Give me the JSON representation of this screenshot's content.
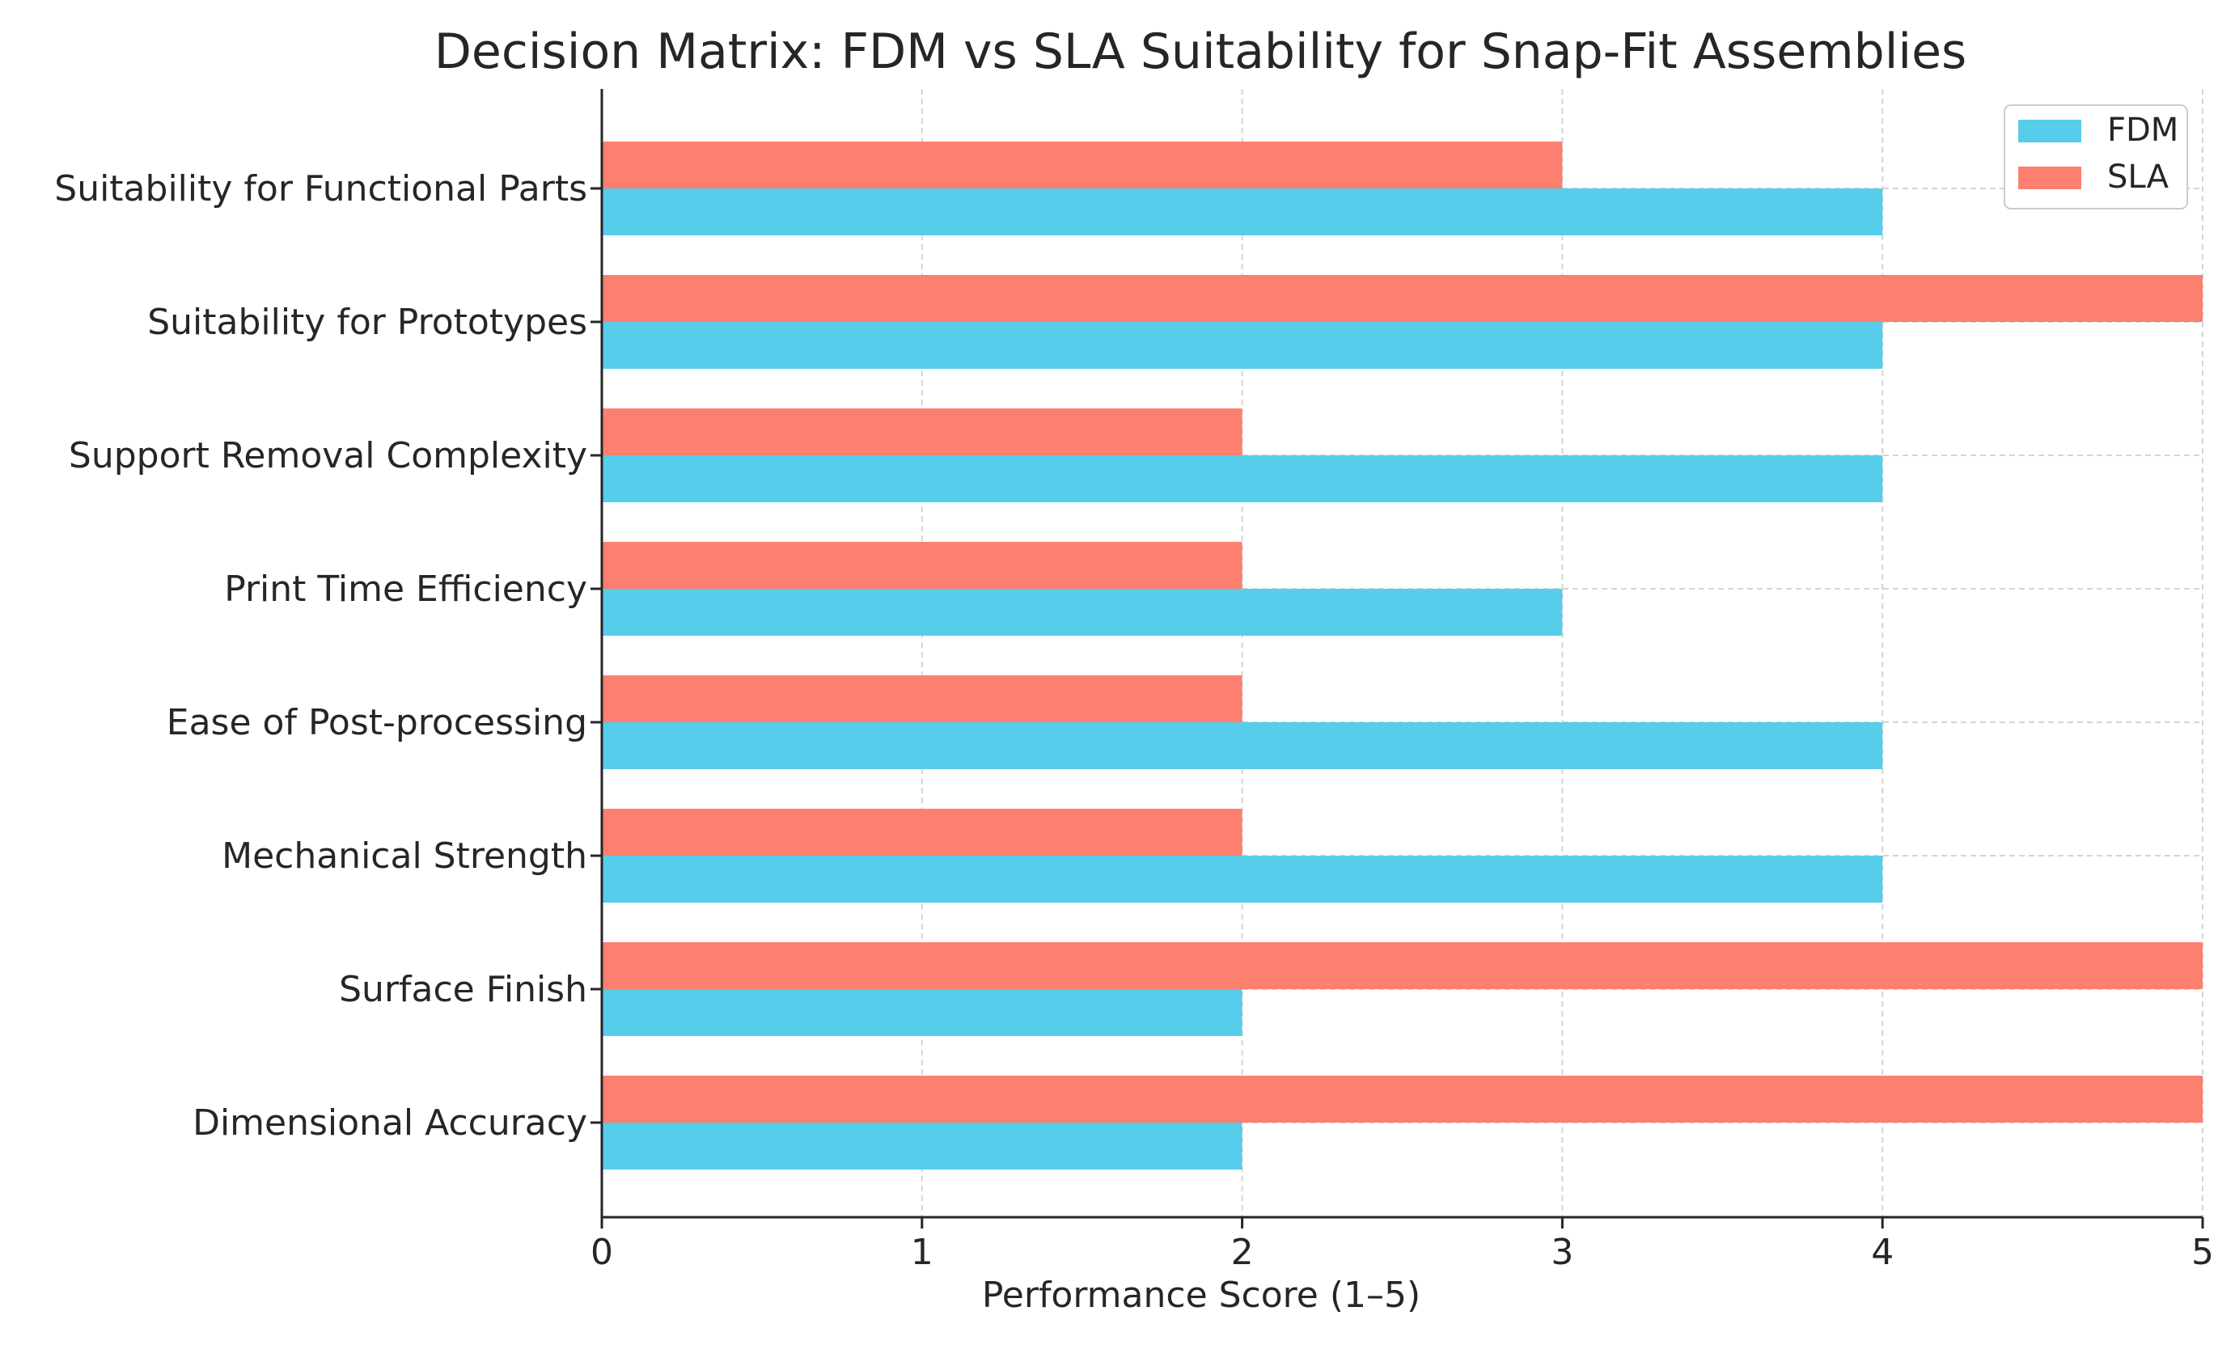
{
  "chart_data": {
    "type": "bar",
    "orientation": "horizontal",
    "title": "Decision Matrix: FDM vs SLA Suitability for Snap-Fit Assemblies",
    "xlabel": "Performance Score (1–5)",
    "ylabel": "",
    "xlim": [
      0,
      5
    ],
    "xticks": [
      "0",
      "1",
      "2",
      "3",
      "4",
      "5"
    ],
    "grid": true,
    "legend_position": "top-right",
    "categories": [
      "Dimensional Accuracy",
      "Surface Finish",
      "Mechanical Strength",
      "Ease of Post-processing",
      "Print Time Efficiency",
      "Support Removal Complexity",
      "Suitability for Prototypes",
      "Suitability for Functional Parts"
    ],
    "series": [
      {
        "name": "FDM",
        "color": "#56cdea",
        "values": [
          2,
          2,
          4,
          4,
          3,
          4,
          4,
          4
        ]
      },
      {
        "name": "SLA",
        "color": "#fd7f6f",
        "values": [
          5,
          5,
          2,
          2,
          2,
          2,
          5,
          3
        ]
      }
    ]
  }
}
